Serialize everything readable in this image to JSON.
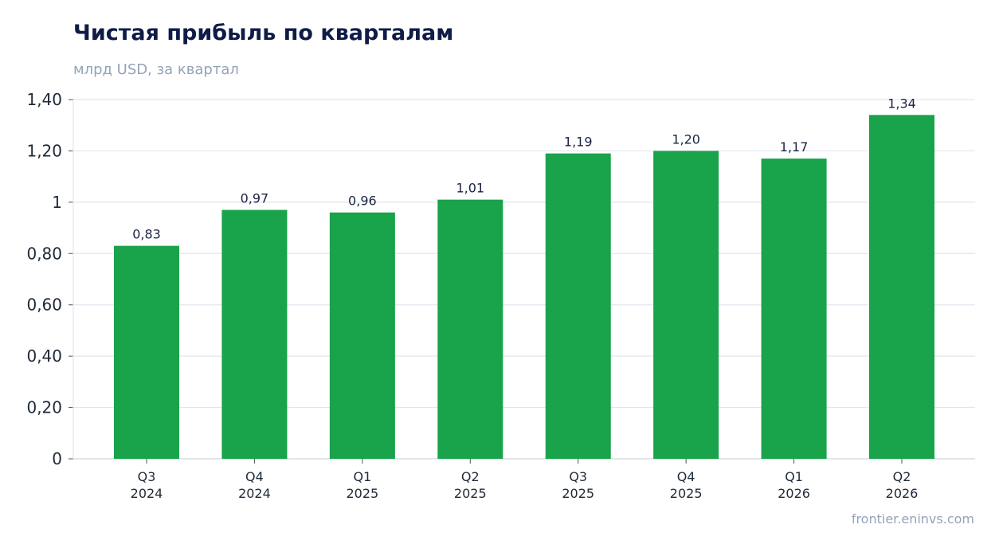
{
  "chart_data": {
    "type": "bar",
    "title": "Чистая прибыль по кварталам",
    "subtitle": "млрд USD, за квартал",
    "categories": [
      [
        "Q3",
        "2024"
      ],
      [
        "Q4",
        "2024"
      ],
      [
        "Q1",
        "2025"
      ],
      [
        "Q2",
        "2025"
      ],
      [
        "Q3",
        "2025"
      ],
      [
        "Q4",
        "2025"
      ],
      [
        "Q1",
        "2026"
      ],
      [
        "Q2",
        "2026"
      ]
    ],
    "values": [
      0.83,
      0.97,
      0.96,
      1.01,
      1.19,
      1.2,
      1.17,
      1.34
    ],
    "data_labels": [
      "0,83",
      "0,97",
      "0,96",
      "1,01",
      "1,19",
      "1,20",
      "1,17",
      "1,34"
    ],
    "yticks": [
      0,
      0.2,
      0.4,
      0.6,
      0.8,
      1,
      1.2,
      1.4
    ],
    "ytick_labels": [
      "0",
      "0,20",
      "0,40",
      "0,60",
      "0,80",
      "1",
      "1,20",
      "1,40"
    ],
    "ylim": [
      0,
      1.4
    ],
    "grid": true,
    "legend": "none",
    "bar_color": "#19a34a",
    "grid_color": "#e2e6ee"
  },
  "source": "frontier.eninvs.com"
}
